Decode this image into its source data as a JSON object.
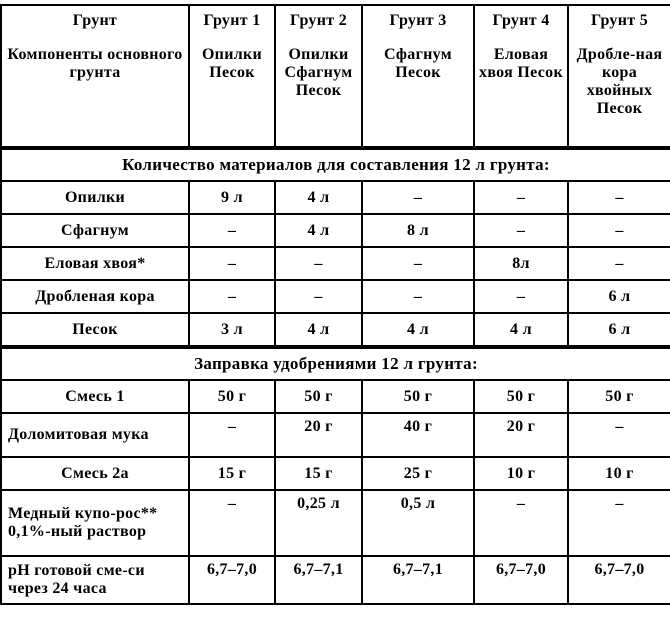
{
  "header": {
    "col0": {
      "title": "Грунт",
      "sub": "Компоненты основного грунта"
    },
    "cols": [
      {
        "title": "Грунт 1",
        "sub": "Опилки Песок"
      },
      {
        "title": "Грунт 2",
        "sub": "Опилки Сфагнум Песок"
      },
      {
        "title": "Грунт 3",
        "sub": "Сфагнум Песок"
      },
      {
        "title": "Грунт 4",
        "sub": "Еловая хвоя Песок"
      },
      {
        "title": "Грунт 5",
        "sub": "Дробле-ная кора хвойных Песок"
      }
    ]
  },
  "section1": "Количество материалов для составления 12 л грунта:",
  "materials": [
    {
      "label": "Опилки",
      "values": [
        "9 л",
        "4 л",
        "–",
        "–",
        "–"
      ]
    },
    {
      "label": "Сфагнум",
      "values": [
        "–",
        "4 л",
        "8 л",
        "–",
        "–"
      ]
    },
    {
      "label": "Еловая хвоя*",
      "values": [
        "–",
        "–",
        "–",
        "8л",
        "–"
      ]
    },
    {
      "label": "Дробленая кора",
      "values": [
        "–",
        "–",
        "–",
        "–",
        "6 л"
      ]
    },
    {
      "label": "Песок",
      "values": [
        "3 л",
        "4 л",
        "4 л",
        "4 л",
        "6 л"
      ]
    }
  ],
  "section2": "Заправка удобрениями 12 л грунта:",
  "fertilizers": [
    {
      "label": "Смесь 1",
      "values": [
        "50 г",
        "50 г",
        "50 г",
        "50 г",
        "50 г"
      ]
    },
    {
      "label": "Доломитовая мука",
      "values": [
        "–",
        "20 г",
        "40 г",
        "20 г",
        "–"
      ]
    },
    {
      "label": "Смесь 2а",
      "values": [
        "15 г",
        "15 г",
        "25 г",
        "10 г",
        "10 г"
      ]
    },
    {
      "label": "Медный купо-рос** 0,1%-ный раствор",
      "values": [
        "–",
        "0,25 л",
        "0,5 л",
        "–",
        "–"
      ]
    },
    {
      "label": "pH готовой сме-си через 24 часа",
      "values": [
        "6,7–7,0",
        "6,7–7,1",
        "6,7–7,1",
        "6,7–7,0",
        "6,7–7,0"
      ]
    }
  ]
}
